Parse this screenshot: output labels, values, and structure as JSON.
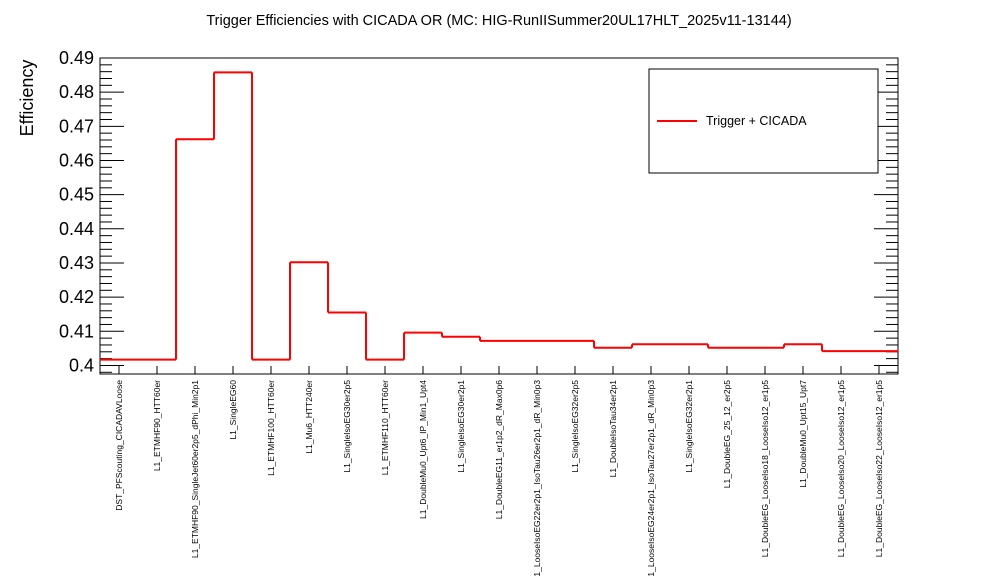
{
  "chart_data": {
    "type": "bar",
    "title": "Trigger Efficiencies with CICADA OR (MC: HIG-RunIISummer20UL17HLT_2025v11-13144)",
    "xlabel": "",
    "ylabel": "Efficiency",
    "ylim": [
      0.3975,
      0.49
    ],
    "yticks": [
      "0.4",
      "0.41",
      "0.42",
      "0.43",
      "0.44",
      "0.45",
      "0.46",
      "0.47",
      "0.48",
      "0.49"
    ],
    "grid": false,
    "legend": "top-right",
    "colors": {
      "series": "#ff0000",
      "axes": "#000000",
      "background": "#ffffff"
    },
    "categories": [
      "DST_PFScouting_CICADAVLoose",
      "L1_ETMHF90_HTT60er",
      "L1_ETMHF90_SingleJet60er2p5_dPhi_Min2p1",
      "L1_SingleEG60",
      "L1_ETMHF100_HTT60er",
      "L1_Mu6_HTT240er",
      "L1_SingleIsoEG30er2p5",
      "L1_ETMHF110_HTT60er",
      "L1_DoubleMu0_Upt6_IP_Min1_Upt4",
      "L1_SingleIsoEG30er2p1",
      "L1_DoubleEG11_er1p2_dR_Max0p6",
      "L1_LooseIsoEG22er2p1_IsoTau26er2p1_dR_Min0p3",
      "L1_SingleIsoEG32er2p5",
      "L1_DoubleIsoTau34er2p1",
      "L1_LooseIsoEG24er2p1_IsoTau27er2p1_dR_Min0p3",
      "L1_SingleIsoEG32er2p1",
      "L1_DoubleEG_25_12_er2p5",
      "L1_DoubleEG_LooseIso18_LooseIso12_er1p5",
      "L1_DoubleMu0_Upt15_Upt7",
      "L1_DoubleEG_LooseIso20_LooseIso12_er1p5",
      "L1_DoubleEG_LooseIso22_LooseIso12_er1p5"
    ],
    "series": [
      {
        "name": "Trigger + CICADA",
        "values": [
          0.4017,
          0.4017,
          0.4662,
          0.4858,
          0.4017,
          0.4302,
          0.4155,
          0.4017,
          0.4096,
          0.4084,
          0.4072,
          0.4072,
          0.4072,
          0.4052,
          0.4062,
          0.4062,
          0.4052,
          0.4052,
          0.4062,
          0.4042,
          0.4042
        ]
      }
    ]
  }
}
